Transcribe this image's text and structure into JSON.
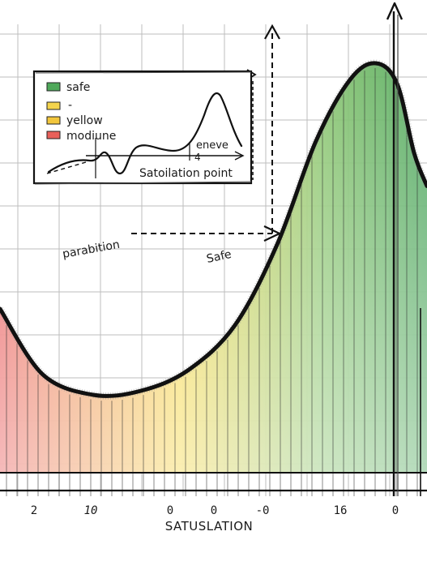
{
  "chart_data": {
    "type": "area",
    "title": "",
    "xlabel": "SATUSLATION",
    "ylabel": "",
    "x_tick_labels": [
      "2",
      "10",
      "0",
      "0",
      "-0",
      "16",
      "0"
    ],
    "grid": true,
    "gradient_colors": [
      "#e85a5a",
      "#f6d84a",
      "#8cc670",
      "#4fa860"
    ],
    "curve": [
      {
        "x": 0,
        "y": 0.4
      },
      {
        "x": 0.1,
        "y": 0.24
      },
      {
        "x": 0.22,
        "y": 0.19
      },
      {
        "x": 0.33,
        "y": 0.2
      },
      {
        "x": 0.44,
        "y": 0.25
      },
      {
        "x": 0.55,
        "y": 0.36
      },
      {
        "x": 0.65,
        "y": 0.56
      },
      {
        "x": 0.74,
        "y": 0.81
      },
      {
        "x": 0.82,
        "y": 0.96
      },
      {
        "x": 0.88,
        "y": 1.0
      },
      {
        "x": 0.93,
        "y": 0.95
      },
      {
        "x": 0.97,
        "y": 0.78
      },
      {
        "x": 1.0,
        "y": 0.7
      }
    ],
    "legend": {
      "placement": "top-left",
      "entries": [
        {
          "label": "safe",
          "color": "#4fa85a"
        },
        {
          "label": "-",
          "color": "#f4d44c"
        },
        {
          "label": "yellow",
          "color": "#f2c63c"
        },
        {
          "label": "modiune",
          "color": "#e8605a"
        }
      ],
      "inset_labels": [
        "eneve",
        "4",
        "Satoilation point"
      ]
    },
    "annotations": [
      {
        "text": "parabition"
      },
      {
        "text": "Safe"
      }
    ]
  }
}
